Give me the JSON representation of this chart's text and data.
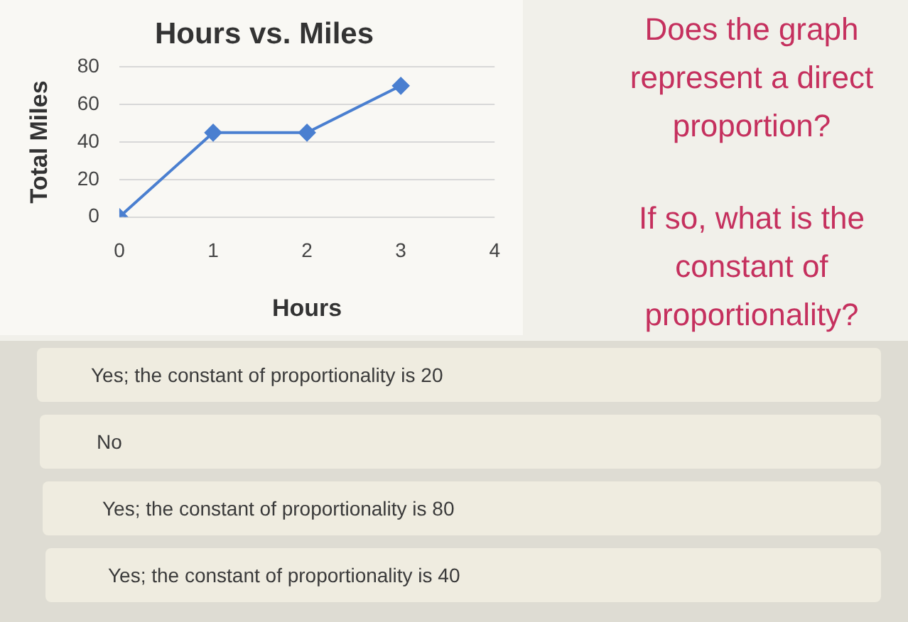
{
  "chart_data": {
    "type": "line",
    "title": "Hours vs. Miles",
    "xlabel": "Hours",
    "ylabel": "Total Miles",
    "x": [
      0,
      1,
      2,
      3
    ],
    "values": [
      0,
      45,
      45,
      70
    ],
    "color": "#4a7fd0",
    "xlim": [
      0,
      4
    ],
    "xticks": [
      0,
      1,
      2,
      3,
      4
    ],
    "ylim": [
      0,
      80
    ],
    "yticks": [
      0,
      20,
      40,
      60,
      80
    ],
    "grid": "y",
    "marker": "diamond",
    "line_style": "solid",
    "annotations": [
      "Does the graph represent a direct proportion?",
      "If so, what is the constant of proportionality?",
      "Yes; the constant of proportionality is 20",
      "No",
      "Yes; the constant of proportionality is 80",
      "Yes; the constant of proportionality is 40"
    ]
  }
}
